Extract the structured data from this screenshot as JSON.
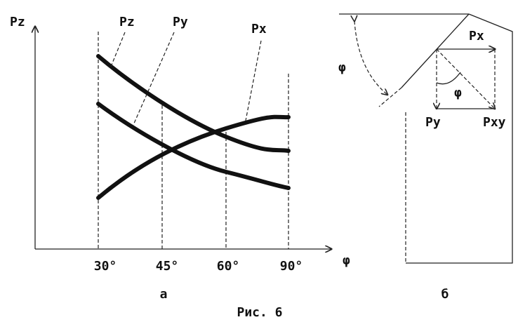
{
  "panel_a": {
    "y_axis_label": "Pz",
    "x_axis_label": "φ",
    "curve_labels": [
      "Pz",
      "Py",
      "Px"
    ],
    "x_ticks": [
      "30°",
      "45°",
      "60°",
      "90°"
    ],
    "caption": "а"
  },
  "panel_b": {
    "angle_label": "φ",
    "force_labels": [
      "Px",
      "Py",
      "Pxy"
    ],
    "inner_angle_label": "φ",
    "caption": "б"
  },
  "figure_caption": "Рис. 6"
}
